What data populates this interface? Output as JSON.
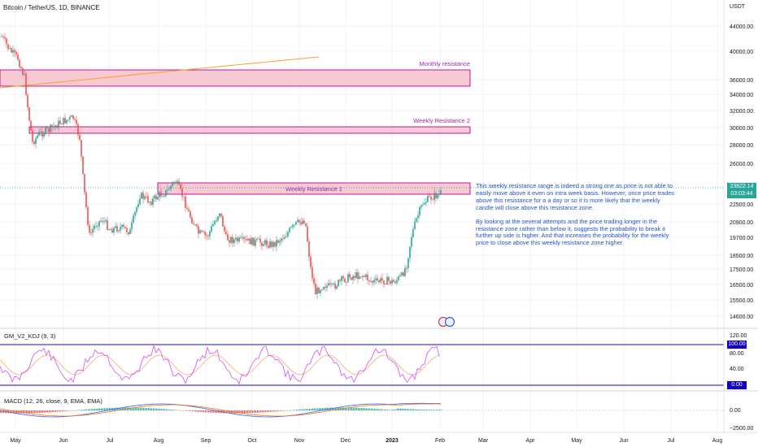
{
  "header": {
    "symbol_title": "Bitcoin / TetherUS, 1D, BINANCE",
    "currency": "USDT"
  },
  "price_axis": {
    "labels": [
      "44000.00",
      "40000.00",
      "36000.00",
      "34000.00",
      "32000.00",
      "30000.00",
      "28000.00",
      "26000.00",
      "22500.00",
      "20900.00",
      "19700.00",
      "18500.00",
      "17500.00",
      "16500.00",
      "15500.00",
      "14600.00"
    ],
    "current_price": "23822.14",
    "countdown": "03:03:44"
  },
  "time_axis": {
    "labels": [
      "May",
      "Jun",
      "Jul",
      "Aug",
      "Sep",
      "Oct",
      "Nov",
      "Dec",
      "2023",
      "Feb",
      "Mar",
      "Apr",
      "May",
      "Jun",
      "Jul",
      "Aug"
    ]
  },
  "zones": {
    "monthly": "Monthly resistance",
    "weekly2": "Weekly Resistance 2",
    "weekly1": "Weekly Resistance 1"
  },
  "annotation": {
    "p1": "This weekly resistance range is indeed a strong one as price is not able to easily move above it even on intra week basis. However, once price trades above this resistance for a a day or so it is more likely that the weekly candle will close above this resistance zone.",
    "p2": "By looking at the several attempts and the price trading longer in the resistance zone rather than below it, suggests the probability to break it further up side is higher. And that increases the probability for the weekly price to close above this weekly resistance zone higher."
  },
  "kdj": {
    "label": "GM_V2_KDJ (9, 3)",
    "axis": [
      "120.00",
      "80.00",
      "40.00"
    ],
    "upper_tag": "100.00",
    "lower_tag": "0.00"
  },
  "macd": {
    "label": "MACD (12, 26, close, 9, EMA, EMA)",
    "axis": [
      "0.00",
      "−2500.00"
    ]
  },
  "colors": {
    "up": "#26a69a",
    "down": "#ef5350",
    "zone_fill": "#f7c9d3",
    "zone_border": "#c2189c",
    "trendline": "#f5a623",
    "annotation_text": "#2454cc",
    "kdj_k": "#d94cf0",
    "kdj_d": "#f5a05a",
    "level_line": "#1a0ac8"
  }
}
